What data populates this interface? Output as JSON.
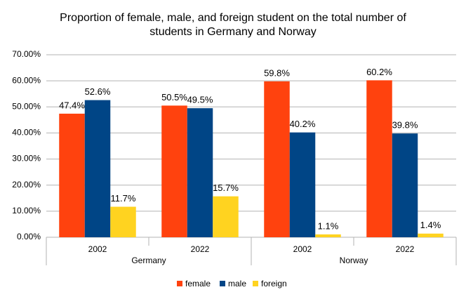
{
  "chart_data": {
    "type": "bar",
    "title": "Proportion of female, male, and foreign student on the total number of students in Germany and Norway",
    "categories": [
      "2002",
      "2022",
      "2002",
      "2022"
    ],
    "groups": [
      "Germany",
      "Norway"
    ],
    "series": [
      {
        "name": "female",
        "color": "#ff420e",
        "values": [
          47.4,
          50.5,
          59.8,
          60.2
        ],
        "value_labels": [
          "47.4%",
          "50.5%",
          "59.8%",
          "60.2%"
        ]
      },
      {
        "name": "male",
        "color": "#004586",
        "values": [
          52.6,
          49.5,
          40.2,
          39.8
        ],
        "value_labels": [
          "52.6%",
          "49.5%",
          "40.2%",
          "39.8%"
        ]
      },
      {
        "name": "foreign",
        "color": "#ffd320",
        "values": [
          11.7,
          15.7,
          1.1,
          1.4
        ],
        "value_labels": [
          "11.7%",
          "15.7%",
          "1.1%",
          "1.4%"
        ]
      }
    ],
    "ylim": [
      0,
      70
    ],
    "yticks": [
      {
        "value": 0,
        "label": "0.00%"
      },
      {
        "value": 10,
        "label": "10.00%"
      },
      {
        "value": 20,
        "label": "20.00%"
      },
      {
        "value": 30,
        "label": "30.00%"
      },
      {
        "value": 40,
        "label": "40.00%"
      },
      {
        "value": 50,
        "label": "50.00%"
      },
      {
        "value": 60,
        "label": "60.00%"
      },
      {
        "value": 70,
        "label": "70.00%"
      }
    ],
    "grid": true,
    "legend": "bottom"
  }
}
